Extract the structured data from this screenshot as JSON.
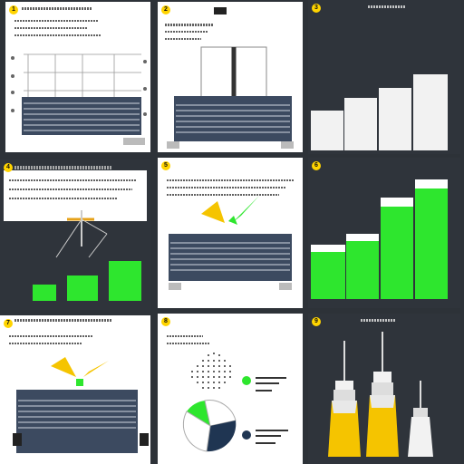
{
  "badges": [
    "1",
    "2",
    "3",
    "4",
    "5",
    "6",
    "7",
    "8",
    "9"
  ],
  "colors": {
    "background": "#2d3238",
    "panel_light": "#ffffff",
    "panel_dark": "#2f343b",
    "accent_green": "#2ee62e",
    "accent_yellow": "#f5c400",
    "building_blue": "#3c4a60",
    "navy": "#1f3552"
  },
  "icons": {
    "badge": "numbered-badge-icon",
    "building": "building-illustration-icon",
    "tower": "tower-illustration-icon",
    "megaphone": "megaphone-icon"
  }
}
